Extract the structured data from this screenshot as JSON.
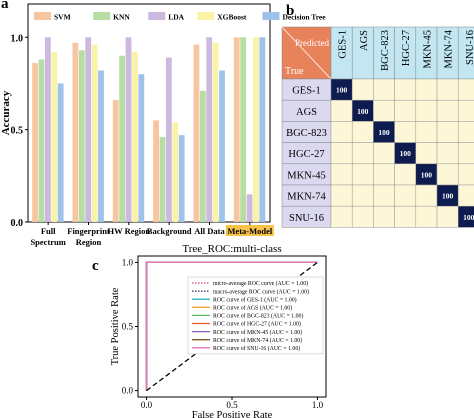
{
  "panels": {
    "a": "a",
    "b": "b",
    "c": "c"
  },
  "chart_data": [
    {
      "type": "bar",
      "ylabel": "Accuracy",
      "ylim": [
        0,
        1.0
      ],
      "yticks": [
        "0.0",
        "0.5",
        "1.0"
      ],
      "categories": [
        "Full\nSpectrum",
        "Fingerprint\nRegion",
        "HW Region",
        "Background",
        "All Data",
        "Meta-Model"
      ],
      "highlight_category": "Meta-Model",
      "highlight_color": "#f6c24a",
      "legend_position": "top",
      "series": [
        {
          "name": "SVM",
          "color": "#f7c6a0",
          "values": [
            0.86,
            0.97,
            0.66,
            0.55,
            0.96,
            1.0
          ]
        },
        {
          "name": "KNN",
          "color": "#b8dda4",
          "values": [
            0.88,
            0.93,
            0.9,
            0.46,
            0.71,
            1.0
          ]
        },
        {
          "name": "LDA",
          "color": "#cdb8df",
          "values": [
            1.0,
            1.0,
            1.0,
            0.89,
            1.0,
            0.15
          ]
        },
        {
          "name": "XGBoost",
          "color": "#f9f3a8",
          "values": [
            0.92,
            0.96,
            0.92,
            0.54,
            0.97,
            1.0
          ]
        },
        {
          "name": "Decision Tree",
          "color": "#9ec3ea",
          "values": [
            0.75,
            0.82,
            0.8,
            0.47,
            0.82,
            1.0
          ]
        }
      ]
    },
    {
      "type": "heatmap",
      "corner_true": "True",
      "corner_predicted": "Predicted",
      "classes": [
        "GES-1",
        "AGS",
        "BGC-823",
        "HGC-27",
        "MKN-45",
        "MKN-74",
        "SNU-16"
      ],
      "diagonal_value": "100",
      "diag_color": "#0d1b4f",
      "off_color": "#fdf7d8",
      "header_color": "#c2e6f2",
      "corner_color": "#e8825a",
      "row_header_color": "#dad9f0"
    },
    {
      "type": "line",
      "title": "Tree_ROC:multi-class",
      "xlabel": "False Positive Rate",
      "ylabel": "True Positive Rate",
      "xlim": [
        0.0,
        1.0
      ],
      "ylim": [
        0.0,
        1.0
      ],
      "xticks": [
        "0.0",
        "0.5",
        "1.0"
      ],
      "yticks": [
        "0.0",
        "0.5",
        "1.0"
      ],
      "legend_position": "lower-right",
      "series": [
        {
          "name": "micro-average ROC curve (AUC = 1.00)",
          "color": "#e0457b",
          "style": "dotted",
          "x": [
            0,
            0,
            1
          ],
          "y": [
            0,
            1,
            1
          ]
        },
        {
          "name": "macro-average ROC curve (AUC = 1.00)",
          "color": "#1f2d5c",
          "style": "dotted",
          "x": [
            0,
            0,
            1
          ],
          "y": [
            0,
            1,
            1
          ]
        },
        {
          "name": "ROC curve of GES-1 (AUC = 1.00)",
          "color": "#2bb5c9",
          "style": "solid",
          "x": [
            0,
            0,
            1
          ],
          "y": [
            0,
            1,
            1
          ]
        },
        {
          "name": "ROC curve of AGS (AUC = 1.00)",
          "color": "#f0a23a",
          "style": "solid",
          "x": [
            0,
            0,
            1
          ],
          "y": [
            0,
            1,
            1
          ]
        },
        {
          "name": "ROC curve of BGC-823 (AUC = 1.00)",
          "color": "#5cb85c",
          "style": "solid",
          "x": [
            0,
            0,
            1
          ],
          "y": [
            0,
            1,
            1
          ]
        },
        {
          "name": "ROC curve of HGC-27 (AUC = 1.00)",
          "color": "#e8552a",
          "style": "solid",
          "x": [
            0,
            0,
            1
          ],
          "y": [
            0,
            1,
            1
          ]
        },
        {
          "name": "ROC curve of MKN-45 (AUC = 1.00)",
          "color": "#8e5ac0",
          "style": "solid",
          "x": [
            0,
            0,
            1
          ],
          "y": [
            0,
            1,
            1
          ]
        },
        {
          "name": "ROC curve of MKN-74 (AUC = 1.00)",
          "color": "#8b5a2b",
          "style": "solid",
          "x": [
            0,
            0,
            1
          ],
          "y": [
            0,
            1,
            1
          ]
        },
        {
          "name": "ROC curve of SNU-16 (AUC = 1.00)",
          "color": "#e377c2",
          "style": "solid",
          "x": [
            0,
            0,
            1
          ],
          "y": [
            0,
            1,
            1
          ]
        },
        {
          "name": "",
          "color": "#000000",
          "style": "dashed",
          "x": [
            0,
            1
          ],
          "y": [
            0,
            1
          ]
        }
      ]
    }
  ]
}
